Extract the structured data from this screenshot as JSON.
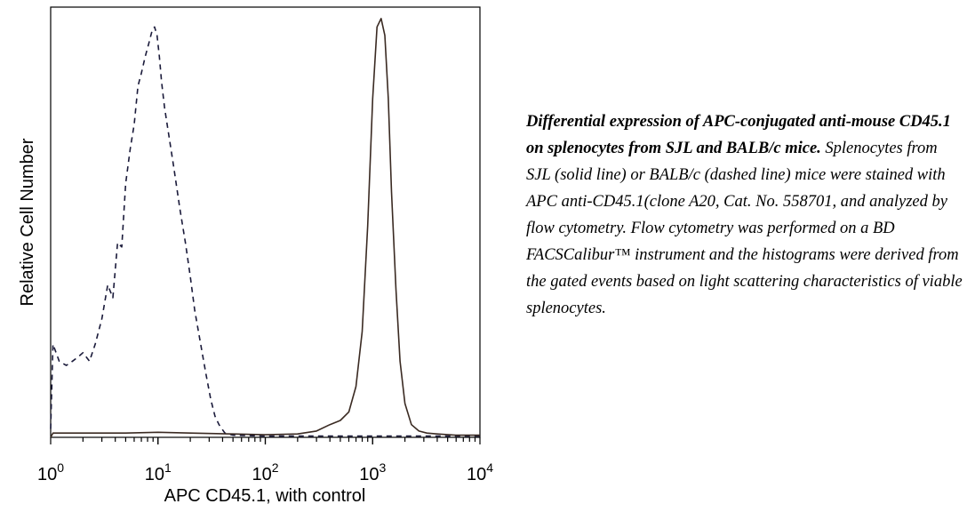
{
  "chart_data": {
    "type": "line",
    "title": "",
    "xlabel": "APC CD45.1, with control",
    "ylabel": "Relative Cell Number",
    "xscale": "log",
    "xlim": [
      1,
      10000
    ],
    "ylim": [
      0,
      1
    ],
    "grid": false,
    "legend": "none",
    "tick_labels": [
      {
        "base": "10",
        "exp": "0",
        "value": 1
      },
      {
        "base": "10",
        "exp": "1",
        "value": 10
      },
      {
        "base": "10",
        "exp": "2",
        "value": 100
      },
      {
        "base": "10",
        "exp": "3",
        "value": 1000
      },
      {
        "base": "10",
        "exp": "4",
        "value": 10000
      }
    ],
    "series": [
      {
        "style": "dashed",
        "color": "#1a1a3a",
        "x": [
          1.0,
          1.05,
          1.2,
          1.4,
          1.6,
          1.8,
          2.0,
          2.3,
          2.6,
          3.0,
          3.4,
          3.8,
          4.2,
          4.6,
          5.0,
          5.5,
          6.0,
          6.5,
          7.0,
          7.6,
          8.2,
          8.8,
          9.3,
          9.8,
          10.3,
          10.8,
          11.5,
          12.5,
          14.0,
          16.0,
          18.0,
          20.0,
          22.0,
          25.0,
          28.0,
          31.0,
          34.0,
          37.0,
          42.0,
          50.0,
          100.0,
          1000.0,
          10000.0
        ],
        "y": [
          0.02,
          0.22,
          0.18,
          0.17,
          0.18,
          0.19,
          0.2,
          0.18,
          0.22,
          0.28,
          0.36,
          0.33,
          0.46,
          0.45,
          0.6,
          0.68,
          0.74,
          0.83,
          0.86,
          0.9,
          0.93,
          0.96,
          0.97,
          0.95,
          0.9,
          0.84,
          0.78,
          0.72,
          0.64,
          0.54,
          0.46,
          0.38,
          0.3,
          0.22,
          0.15,
          0.09,
          0.05,
          0.03,
          0.01,
          0.005,
          0.003,
          0.003,
          0.003
        ]
      },
      {
        "style": "solid",
        "color": "#3a2a22",
        "x": [
          1.0,
          1.05,
          2.0,
          5.0,
          10.0,
          20.0,
          50.0,
          100.0,
          200.0,
          300.0,
          400.0,
          500.0,
          600.0,
          700.0,
          800.0,
          900.0,
          1000.0,
          1100.0,
          1200.0,
          1300.0,
          1400.0,
          1500.0,
          1650.0,
          1800.0,
          2000.0,
          2300.0,
          2700.0,
          3200.0,
          4000.0,
          6000.0,
          10000.0
        ],
        "y": [
          0.0,
          0.01,
          0.01,
          0.01,
          0.012,
          0.01,
          0.008,
          0.006,
          0.008,
          0.015,
          0.03,
          0.04,
          0.06,
          0.12,
          0.25,
          0.5,
          0.8,
          0.97,
          0.99,
          0.95,
          0.8,
          0.58,
          0.35,
          0.18,
          0.08,
          0.03,
          0.015,
          0.01,
          0.008,
          0.005,
          0.005
        ]
      }
    ]
  },
  "caption": {
    "title": "Differential expression of APC-conjugated anti-mouse CD45.1 on splenocytes from SJL and BALB/c mice.",
    "body": "Splenocytes from SJL (solid line) or BALB/c (dashed line) mice were stained with APC anti-CD45.1(clone A20, Cat. No. 558701, and analyzed by flow cytometry. Flow cytometry was performed on a BD FACSCalibur™ instrument and the histograms were derived from the gated events based on light scattering characteristics of viable splenocytes."
  }
}
